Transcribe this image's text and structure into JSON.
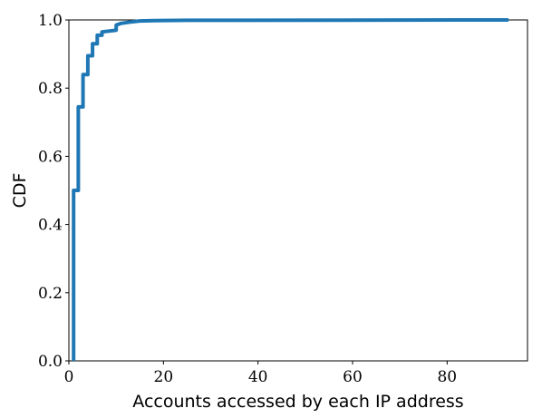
{
  "chart_data": {
    "type": "line",
    "title": "",
    "xlabel": "Accounts accessed by each IP address",
    "ylabel": "CDF",
    "xlim": [
      0,
      97
    ],
    "ylim": [
      0.0,
      1.0
    ],
    "x_ticks": [
      0,
      20,
      40,
      60,
      80
    ],
    "x_tick_labels": [
      "0",
      "20",
      "40",
      "60",
      "80"
    ],
    "y_ticks": [
      0.0,
      0.2,
      0.4,
      0.6,
      0.8,
      1.0
    ],
    "y_tick_labels": [
      "0.0",
      "0.2",
      "0.4",
      "0.6",
      "0.8",
      "1.0"
    ],
    "grid": false,
    "legend": "none",
    "series": [
      {
        "color": "#1f77b4",
        "step": true,
        "x": [
          1,
          1,
          2,
          2,
          3,
          3,
          4,
          4,
          5,
          5,
          6,
          6,
          7,
          7,
          10,
          10,
          11,
          13,
          15,
          18,
          25,
          93
        ],
        "y": [
          0.0,
          0.5,
          0.5,
          0.745,
          0.745,
          0.84,
          0.84,
          0.895,
          0.895,
          0.93,
          0.93,
          0.955,
          0.955,
          0.965,
          0.97,
          0.985,
          0.99,
          0.994,
          0.997,
          0.998,
          0.999,
          1.0
        ]
      }
    ]
  }
}
